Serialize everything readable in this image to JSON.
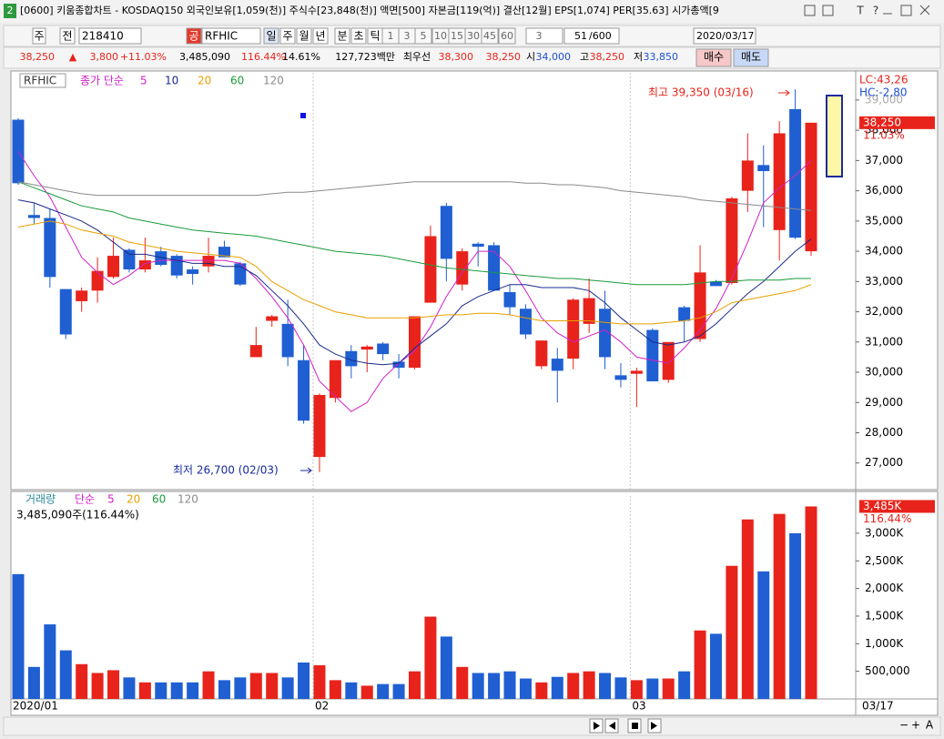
{
  "title_bar": {
    "window_id": "2",
    "title": "[0600] 키움종합차트 - KOSDAQ150 외국인보유[1,059(천)] 주식수[23,848(천)] 액면[500] 자본금[119(억)] 결산[12월] EPS[1,074] PER[35.63] 시가총액[9",
    "font_button": "T",
    "help": "?"
  },
  "toolbar": {
    "period": "주",
    "all": "전",
    "code": "218410",
    "market": "공",
    "name": "RFHIC",
    "units": [
      "일",
      "주",
      "월",
      "년",
      "분",
      "초",
      "틱"
    ],
    "minutes": [
      "1",
      "3",
      "5",
      "10",
      "15",
      "30",
      "45",
      "60"
    ],
    "count": "3",
    "shown": "51",
    "total": "/600",
    "date": "2020/03/17"
  },
  "quote": {
    "price": "38,250",
    "arrow": "▲",
    "change": "3,800",
    "rate": "+11.03%",
    "volume": "3,485,090",
    "volume_rate": "116.44%",
    "turnover": "14.61%",
    "amount": "127,723백만",
    "best": "최우선",
    "ask": "38,300",
    "bid": "38,250",
    "open_label": "시",
    "open": "34,000",
    "high_label": "고",
    "high": "38,250",
    "low_label": "저",
    "low": "33,850",
    "buy": "매수",
    "sell": "매도"
  },
  "scrollbar": {
    "zoom_out": "−",
    "zoom_in": "+",
    "font": "A"
  },
  "chart_data": [
    {
      "type": "candlestick",
      "symbol": "RFHIC",
      "ma_label": "종가 단순",
      "up_color": "#e8231b",
      "down_color": "#1f5fd2",
      "categories": [
        "2020/01",
        null,
        null,
        null,
        null,
        null,
        null,
        null,
        null,
        null,
        null,
        null,
        null,
        null,
        null,
        null,
        null,
        null,
        null,
        "02",
        null,
        null,
        null,
        null,
        null,
        null,
        null,
        null,
        null,
        null,
        null,
        null,
        null,
        null,
        null,
        null,
        null,
        null,
        null,
        "03",
        null,
        null,
        null,
        null,
        null,
        null,
        null,
        null,
        null,
        null,
        null
      ],
      "end_date": "03/17",
      "open": [
        38350,
        35200,
        35100,
        32750,
        32350,
        32700,
        33150,
        34050,
        33400,
        34000,
        33850,
        33400,
        33500,
        34150,
        33600,
        30500,
        31700,
        31600,
        30400,
        27200,
        29150,
        30700,
        30750,
        30950,
        30350,
        30150,
        32300,
        35500,
        32900,
        34250,
        34200,
        32650,
        32100,
        30200,
        30450,
        30450,
        31600,
        32100,
        29900,
        29950,
        31400,
        29750,
        32150,
        31100,
        33000,
        32950,
        36000,
        36850,
        34700,
        38700,
        34000
      ],
      "high": [
        38400,
        35600,
        35400,
        32750,
        32800,
        33800,
        34450,
        34100,
        34450,
        34150,
        33900,
        33500,
        34450,
        34350,
        33650,
        31500,
        31900,
        32400,
        30900,
        29300,
        30400,
        30900,
        30900,
        31000,
        30600,
        31850,
        34850,
        35600,
        34100,
        34300,
        34300,
        32900,
        32250,
        31050,
        30800,
        32450,
        33100,
        32700,
        30300,
        30150,
        31450,
        31000,
        32200,
        34200,
        33050,
        35800,
        37900,
        37500,
        38300,
        39350,
        38250
      ],
      "low": [
        36200,
        34900,
        32800,
        31100,
        32000,
        32300,
        33100,
        33300,
        33300,
        33500,
        33100,
        32900,
        33300,
        33800,
        32850,
        30500,
        31500,
        30200,
        28300,
        26700,
        29000,
        29800,
        30000,
        30400,
        29800,
        30100,
        32300,
        33000,
        32700,
        33500,
        32700,
        31900,
        31100,
        30100,
        29000,
        30100,
        31300,
        30100,
        29500,
        28850,
        29700,
        29650,
        31000,
        31000,
        32850,
        32900,
        35300,
        34800,
        33700,
        34400,
        33850
      ],
      "close": [
        36250,
        35100,
        33150,
        31250,
        32700,
        33350,
        33850,
        33400,
        33700,
        33550,
        33200,
        33250,
        33850,
        33800,
        32900,
        30900,
        31850,
        30500,
        28400,
        29250,
        30400,
        30200,
        30850,
        30600,
        30150,
        31850,
        34500,
        33750,
        34000,
        34150,
        32700,
        32150,
        31250,
        31050,
        30050,
        32400,
        32450,
        30500,
        29750,
        30050,
        29700,
        31000,
        31700,
        33300,
        32850,
        35750,
        37000,
        36650,
        37900,
        34450,
        38250
      ],
      "series": [
        {
          "name": "5",
          "color": "#d020c8",
          "values": [
            37300,
            36500,
            35800,
            34800,
            33800,
            33300,
            32900,
            33200,
            33600,
            33700,
            33700,
            33700,
            33700,
            33700,
            33600,
            33100,
            32500,
            31800,
            30900,
            29700,
            29200,
            28700,
            29000,
            29800,
            30300,
            30700,
            31500,
            32500,
            33300,
            34000,
            34000,
            33500,
            32700,
            31800,
            31300,
            31000,
            31200,
            31400,
            31000,
            30500,
            30400,
            30300,
            30800,
            31400,
            32100,
            33100,
            34300,
            35600,
            36100,
            36500,
            37000
          ]
        },
        {
          "name": "10",
          "color": "#1a2a8a",
          "values": [
            35700,
            35600,
            35400,
            35200,
            35000,
            34700,
            34300,
            33900,
            33900,
            33800,
            33700,
            33600,
            33600,
            33500,
            33500,
            33200,
            32700,
            32200,
            31600,
            30900,
            30600,
            30400,
            30300,
            30250,
            30300,
            30800,
            31200,
            31600,
            32200,
            32500,
            32700,
            32900,
            32900,
            32800,
            32800,
            32800,
            32700,
            32300,
            31800,
            31400,
            31000,
            30900,
            31000,
            31200,
            31600,
            32100,
            32600,
            33000,
            33500,
            34000,
            34400
          ]
        },
        {
          "name": "20",
          "color": "#e8a000",
          "values": [
            34800,
            34900,
            35000,
            34900,
            34700,
            34600,
            34500,
            34300,
            34200,
            34100,
            34000,
            33950,
            33900,
            33850,
            33800,
            33500,
            33000,
            32700,
            32400,
            32200,
            32000,
            31900,
            31800,
            31800,
            31800,
            31800,
            31850,
            31900,
            31900,
            31950,
            31950,
            31900,
            31800,
            31700,
            31700,
            31700,
            31700,
            31650,
            31600,
            31600,
            31600,
            31650,
            31700,
            31800,
            32000,
            32300,
            32400,
            32500,
            32600,
            32700,
            32900
          ]
        },
        {
          "name": "60",
          "color": "#1a9a3a",
          "values": [
            36300,
            36100,
            35900,
            35700,
            35500,
            35400,
            35300,
            35100,
            35000,
            34900,
            34800,
            34700,
            34650,
            34600,
            34550,
            34500,
            34400,
            34300,
            34200,
            34100,
            34000,
            33950,
            33900,
            33850,
            33750,
            33650,
            33550,
            33450,
            33400,
            33350,
            33300,
            33250,
            33200,
            33150,
            33100,
            33100,
            33050,
            33000,
            32950,
            32900,
            32900,
            32900,
            32900,
            32950,
            33000,
            33000,
            33050,
            33050,
            33050,
            33100,
            33100
          ]
        },
        {
          "name": "120",
          "color": "#8a8a8a",
          "values": [
            36300,
            36200,
            36100,
            36000,
            35900,
            35850,
            35850,
            35850,
            35850,
            35850,
            35850,
            35850,
            35850,
            35850,
            35850,
            35850,
            35900,
            35950,
            35950,
            36000,
            36050,
            36100,
            36150,
            36200,
            36250,
            36300,
            36300,
            36300,
            36300,
            36300,
            36300,
            36300,
            36250,
            36250,
            36200,
            36200,
            36150,
            36100,
            36000,
            35950,
            35900,
            35850,
            35800,
            35700,
            35650,
            35600,
            35550,
            35500,
            35450,
            35400,
            35350
          ]
        }
      ],
      "ylim": [
        26150,
        39900
      ],
      "yticks": [
        {
          "value": 27000,
          "label": "27,000"
        },
        {
          "value": 28000,
          "label": "28,000"
        },
        {
          "value": 29000,
          "label": "29,000"
        },
        {
          "value": 30000,
          "label": "30,000"
        },
        {
          "value": 31000,
          "label": "31,000"
        },
        {
          "value": 32000,
          "label": "32,000"
        },
        {
          "value": 33000,
          "label": "33,000"
        },
        {
          "value": 34000,
          "label": "34,000"
        },
        {
          "value": 35000,
          "label": "35,000"
        },
        {
          "value": 36000,
          "label": "36,000"
        },
        {
          "value": 37000,
          "label": "37,000"
        },
        {
          "value": 38000,
          "label": "38,000"
        },
        {
          "value": 39000,
          "label": "39,000"
        }
      ],
      "annotations": {
        "max": "최고 39,350 (03/16)",
        "min": "최저 26,700 (02/03)",
        "lc": "LC:43,26",
        "hc": "HC:-2,80",
        "last_price": "38,250",
        "last_rate": "11.03%"
      }
    },
    {
      "type": "bar",
      "title": "거래량",
      "ma_label": "단순",
      "ma_names": [
        "5",
        "20",
        "60",
        "120"
      ],
      "ma_colors": [
        "#d020c8",
        "#e8a000",
        "#1a9a3a",
        "#8a8a8a"
      ],
      "subtitle": "3,485,090주(116.44%)",
      "last_label": "3,485K",
      "last_rate": "116.44%",
      "values": [
        2260000,
        580000,
        1350000,
        880000,
        630000,
        470000,
        520000,
        390000,
        300000,
        300000,
        300000,
        300000,
        500000,
        340000,
        390000,
        470000,
        470000,
        390000,
        660000,
        610000,
        340000,
        300000,
        240000,
        270000,
        270000,
        500000,
        1490000,
        1130000,
        580000,
        470000,
        470000,
        500000,
        370000,
        300000,
        400000,
        470000,
        500000,
        470000,
        390000,
        340000,
        370000,
        370000,
        500000,
        1240000,
        1180000,
        2410000,
        3250000,
        2310000,
        3350000,
        3000000,
        3485090
      ],
      "ylim": [
        0,
        3674000
      ],
      "yticks": [
        {
          "value": 500000,
          "label": "500,000"
        },
        {
          "value": 1000000,
          "label": "1,000K"
        },
        {
          "value": 1500000,
          "label": "1,500K"
        },
        {
          "value": 2000000,
          "label": "2,000K"
        },
        {
          "value": 2500000,
          "label": "2,500K"
        },
        {
          "value": 3000000,
          "label": "3,000K"
        }
      ]
    }
  ]
}
